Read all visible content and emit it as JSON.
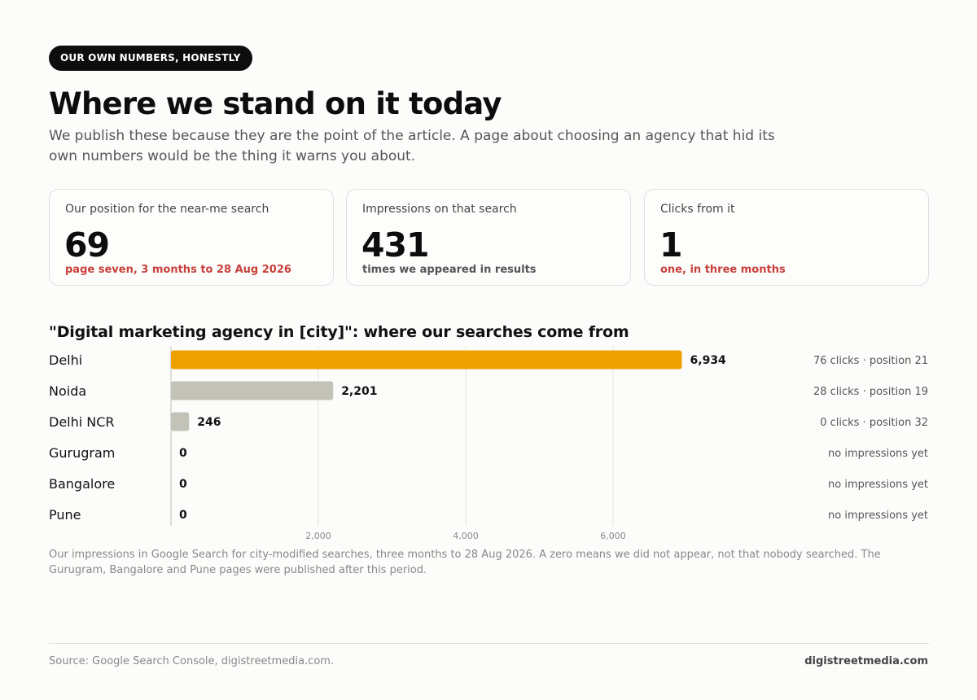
{
  "header": {
    "badge": "OUR OWN NUMBERS, HONESTLY",
    "title": "Where we stand on it today",
    "lede": "We publish these because they are the point of the article. A page about choosing an agency that hid its own numbers would be the thing it warns you about."
  },
  "cards": [
    {
      "label": "Our position for the near-me search",
      "value": "69",
      "note": "page seven, 3 months to 28 Aug 2026",
      "note_tone": "red"
    },
    {
      "label": "Impressions on that search",
      "value": "431",
      "note": "times we appeared in results",
      "note_tone": "gray"
    },
    {
      "label": "Clicks from it",
      "value": "1",
      "note": "one, in three months",
      "note_tone": "red"
    }
  ],
  "chart_data": {
    "type": "bar",
    "orientation": "horizontal",
    "title": "\"Digital marketing agency in [city]\": where our searches come from",
    "categories": [
      "Delhi",
      "Noida",
      "Delhi NCR",
      "Gurugram",
      "Bangalore",
      "Pune"
    ],
    "values": [
      6934,
      2201,
      246,
      0,
      0,
      0
    ],
    "value_labels": [
      "6,934",
      "2,201",
      "246",
      "0",
      "0",
      "0"
    ],
    "side_notes": [
      "76 clicks · position 21",
      "28 clicks · position 19",
      "0 clicks · position 32",
      "no impressions yet",
      "no impressions yet",
      "no impressions yet"
    ],
    "x_ticks": [
      2000,
      4000,
      6000
    ],
    "x_tick_labels": [
      "2,000",
      "4,000",
      "6,000"
    ],
    "xlim": [
      0,
      10000
    ],
    "grid": true,
    "colors": {
      "highlight": "#eca100",
      "default": "#c2c2b8",
      "grid": "#e4e4e0",
      "axis": "#bdbdb6"
    }
  },
  "caption": "Our impressions in Google Search for city-modified searches, three months to 28 Aug 2026. A zero means we did not appear, not that nobody searched. The Gurugram, Bangalore and Pune pages were published after this period.",
  "footer": {
    "source": "Source: Google Search Console, digistreetmedia.com.",
    "site": "digistreetmedia.com"
  }
}
